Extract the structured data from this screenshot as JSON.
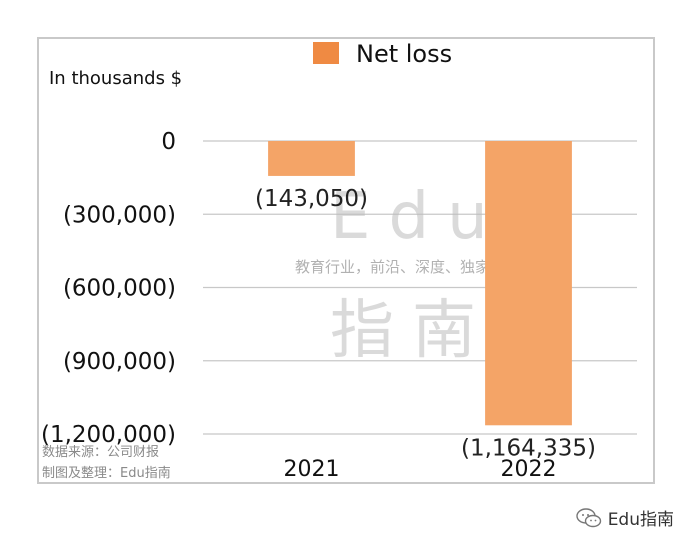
{
  "chart_data": {
    "type": "bar",
    "title": "",
    "ylabel": "In thousands $",
    "categories": [
      "2021",
      "2022"
    ],
    "series": [
      {
        "name": "Net loss",
        "values": [
          -143050,
          -1164335
        ],
        "labels": [
          "(143,050)",
          "(1,164,335)"
        ]
      }
    ],
    "ylim": [
      -1200000,
      0
    ],
    "yticks": [
      {
        "value": 0,
        "label": "0"
      },
      {
        "value": -300000,
        "label": "(300,000)"
      },
      {
        "value": -600000,
        "label": "(600,000)"
      },
      {
        "value": -900000,
        "label": "(900,000)"
      },
      {
        "value": -1200000,
        "label": "(1,200,000)"
      }
    ],
    "grid": true,
    "legend_position": "top",
    "bar_color": "#f4a467",
    "legend_color": "#ef8a43"
  },
  "watermark": {
    "line1": "Edu",
    "line2": "教育行业，前沿、深度、独家",
    "line3": "指南"
  },
  "source": {
    "line1": "数据来源：公司财报",
    "line2": "制图及整理：Edu指南"
  },
  "brand": {
    "icon": "wechat-icon",
    "label": "Edu指南"
  }
}
